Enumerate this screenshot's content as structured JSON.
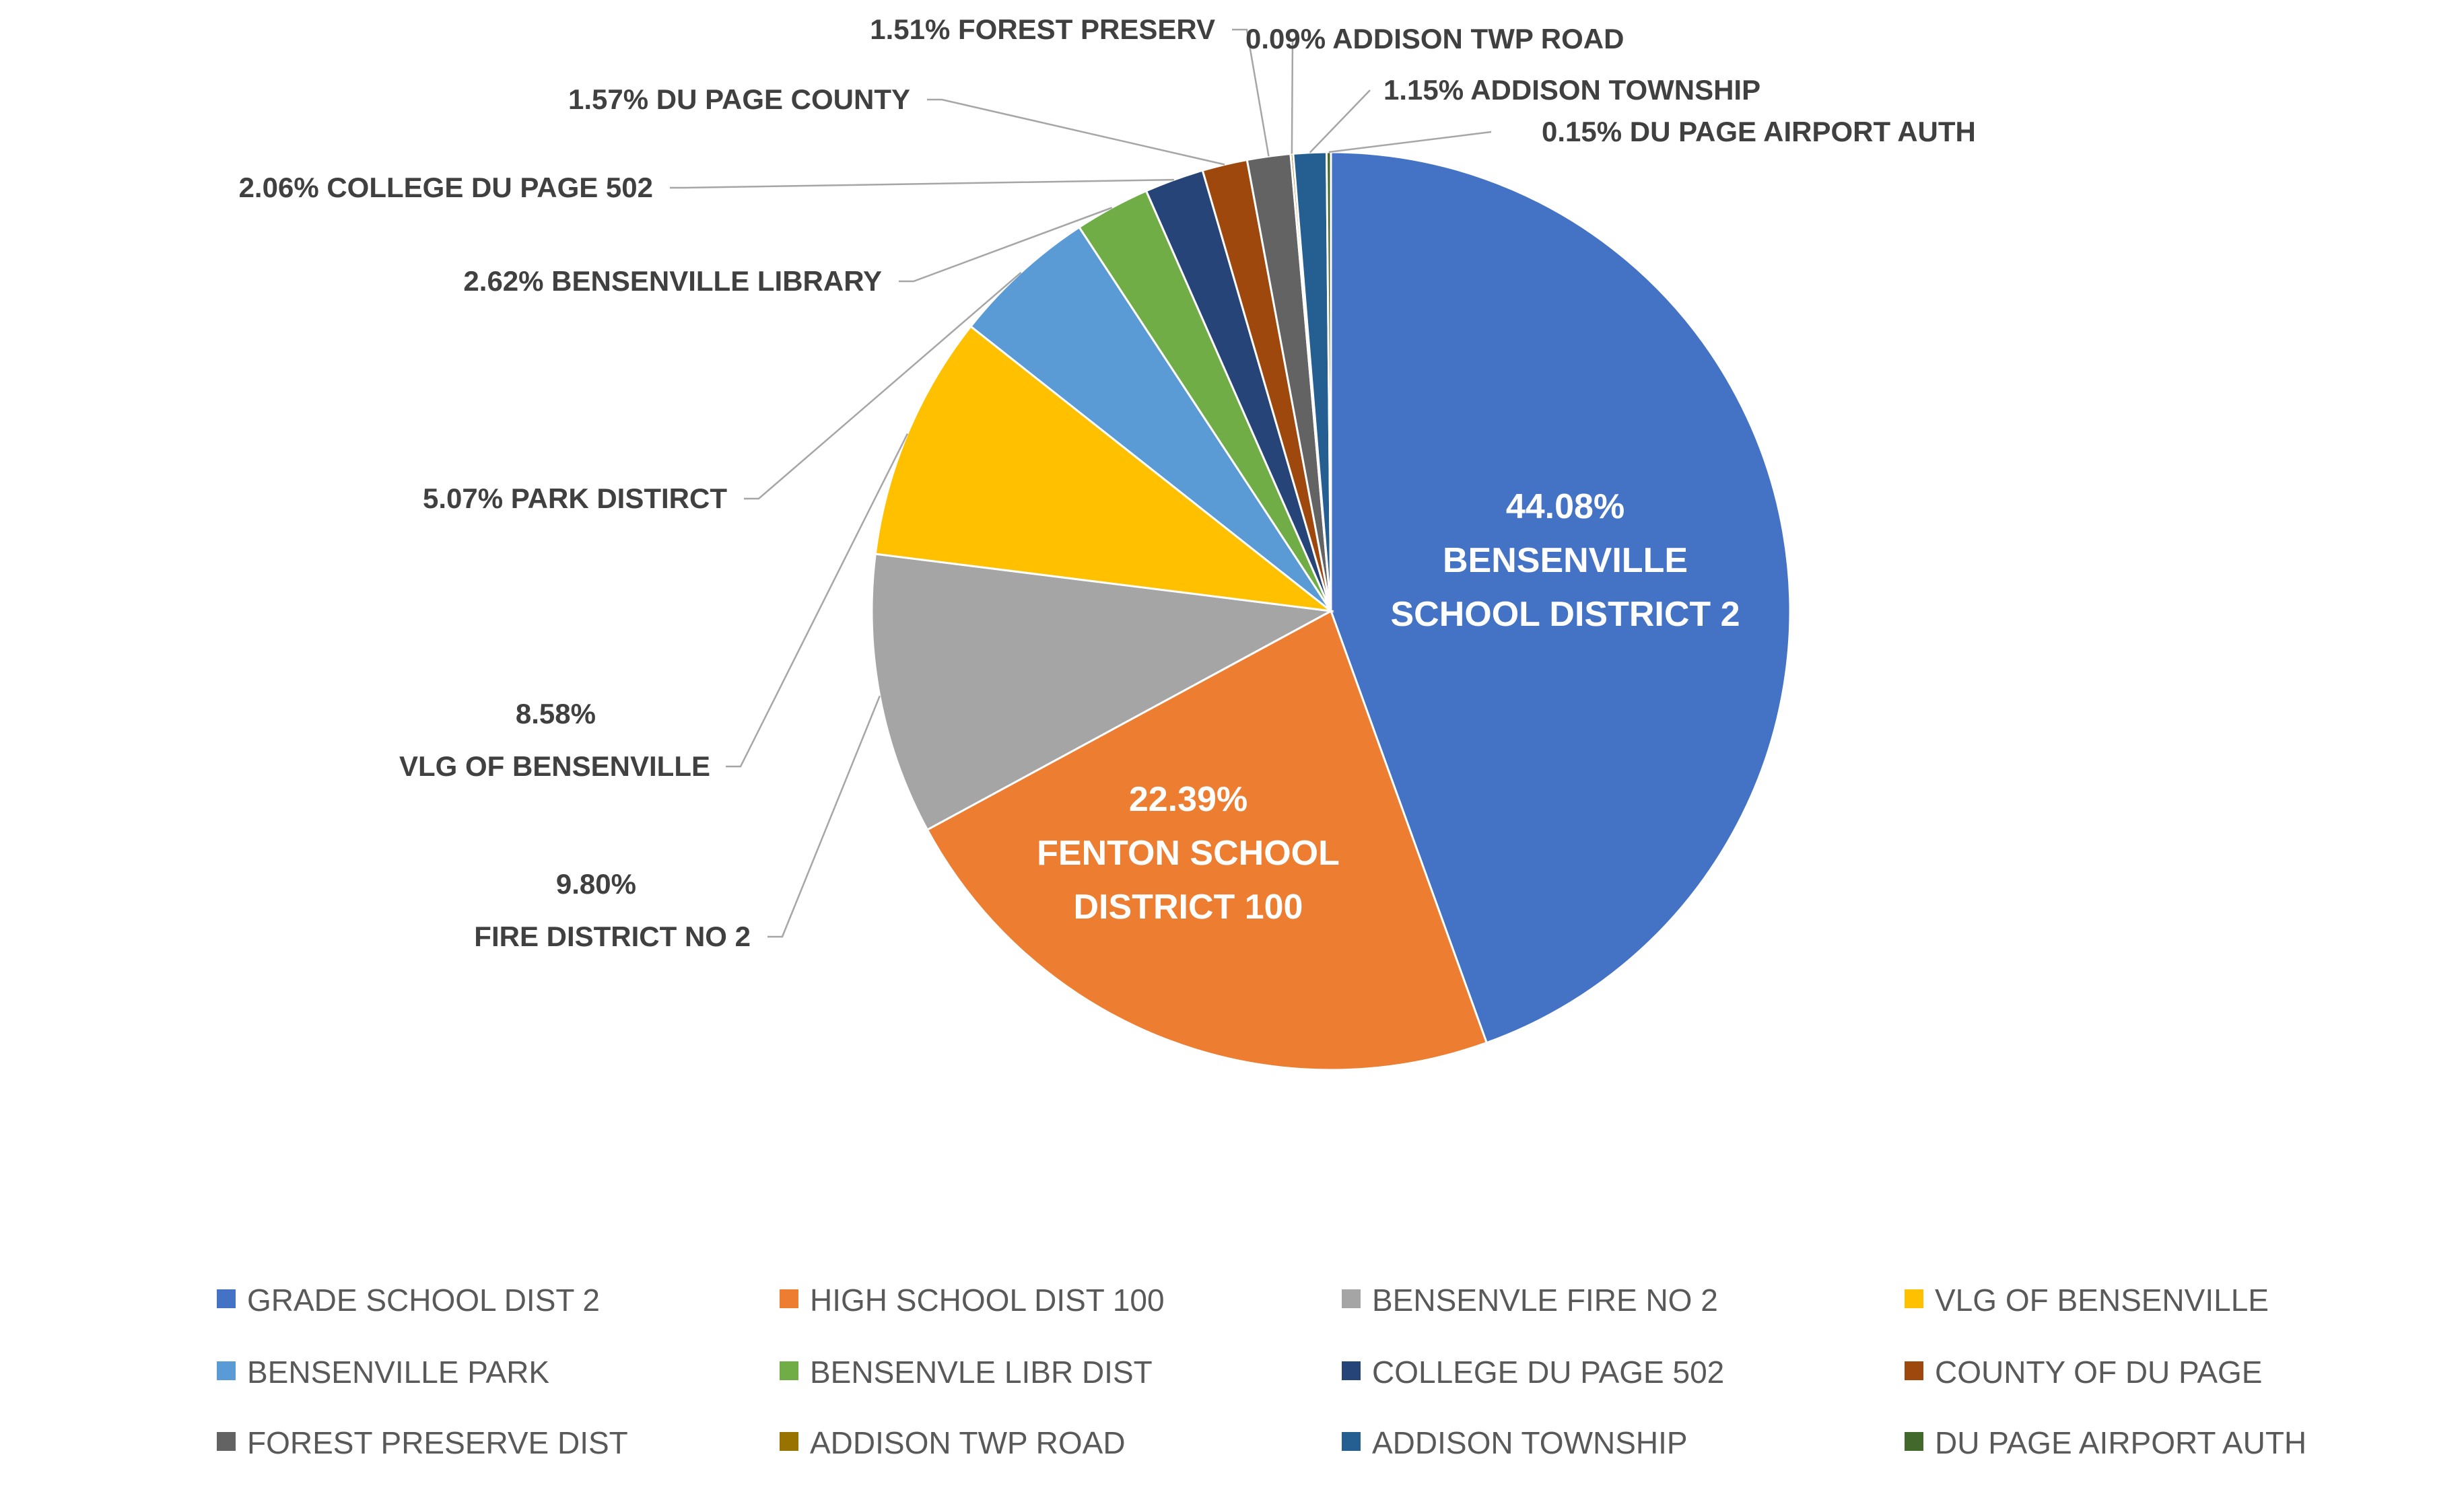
{
  "chart_data": {
    "type": "pie",
    "slices": [
      {
        "legend": "GRADE SCHOOL DIST 2",
        "value": 44.08,
        "pct_text": "44.08%",
        "label_lines": [
          "BENSENVILLE",
          "SCHOOL DISTRICT 2"
        ],
        "color": "#4472C4",
        "label_style": "inside"
      },
      {
        "legend": "HIGH SCHOOL DIST 100",
        "value": 22.39,
        "pct_text": "22.39%",
        "label_lines": [
          "FENTON SCHOOL",
          "DISTRICT 100"
        ],
        "color": "#ED7D31",
        "label_style": "inside"
      },
      {
        "legend": "BENSENVLE FIRE NO 2",
        "value": 9.8,
        "pct_text": "9.80%",
        "label_lines": [
          "FIRE DISTRICT NO 2"
        ],
        "color": "#A5A5A5",
        "label_style": "outside"
      },
      {
        "legend": "VLG OF BENSENVILLE",
        "value": 8.58,
        "pct_text": "8.58%",
        "label_lines": [
          "VLG OF BENSENVILLE"
        ],
        "color": "#FFC000",
        "label_style": "outside"
      },
      {
        "legend": "BENSENVILLE PARK",
        "value": 5.07,
        "pct_text": "5.07%",
        "label_lines": [
          "PARK DISTIRCT"
        ],
        "color": "#5B9BD5",
        "label_style": "outside"
      },
      {
        "legend": "BENSENVLE LIBR DIST",
        "value": 2.62,
        "pct_text": "2.62%",
        "label_lines": [
          "BENSENVILLE LIBRARY"
        ],
        "color": "#70AD47",
        "label_style": "outside"
      },
      {
        "legend": "COLLEGE DU PAGE 502",
        "value": 2.06,
        "pct_text": "2.06%",
        "label_lines": [
          "COLLEGE DU PAGE 502"
        ],
        "color": "#264478",
        "label_style": "outside"
      },
      {
        "legend": "COUNTY OF DU PAGE",
        "value": 1.57,
        "pct_text": "1.57%",
        "label_lines": [
          "DU PAGE COUNTY"
        ],
        "color": "#9E480E",
        "label_style": "outside"
      },
      {
        "legend": "FOREST PRESERVE DIST",
        "value": 1.51,
        "pct_text": "1.51%",
        "label_lines": [
          "FOREST PRESERV"
        ],
        "color": "#636363",
        "label_style": "outside"
      },
      {
        "legend": "ADDISON TWP ROAD",
        "value": 0.09,
        "pct_text": "0.09%",
        "label_lines": [
          "ADDISON TWP ROAD"
        ],
        "color": "#997300",
        "label_style": "outside"
      },
      {
        "legend": "ADDISON TOWNSHIP",
        "value": 1.15,
        "pct_text": "1.15%",
        "label_lines": [
          "ADDISON TOWNSHIP"
        ],
        "color": "#255E91",
        "label_style": "outside"
      },
      {
        "legend": "DU PAGE AIRPORT AUTH",
        "value": 0.15,
        "pct_text": "0.15%",
        "label_lines": [
          "DU PAGE AIRPORT AUTH"
        ],
        "color": "#43682B",
        "label_style": "outside"
      }
    ],
    "legend_position": "bottom",
    "leader_line_color": "#A6A6A6"
  }
}
